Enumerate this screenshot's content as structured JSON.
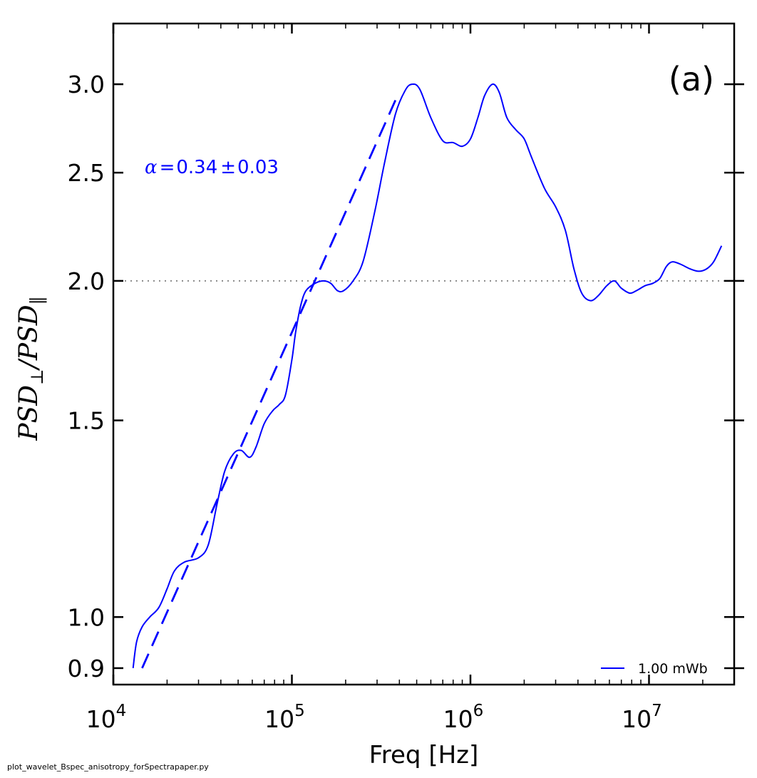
{
  "chart_data": {
    "type": "line",
    "title": "",
    "xlabel": "Freq [Hz]",
    "ylabel_parts": {
      "main": "PSD",
      "sub_perp": "⊥",
      "sep": "/",
      "main2": "PSD",
      "sub_par": "‖"
    },
    "xscale": "log",
    "yscale": "log",
    "xlim": [
      10000,
      30000000
    ],
    "ylim": [
      0.87,
      3.4
    ],
    "xticks": [
      {
        "value": 10000,
        "base": "10",
        "exp": "4"
      },
      {
        "value": 100000,
        "base": "10",
        "exp": "5"
      },
      {
        "value": 1000000,
        "base": "10",
        "exp": "6"
      },
      {
        "value": 10000000,
        "base": "10",
        "exp": "7"
      }
    ],
    "yticks": [
      {
        "value": 0.9,
        "label": "0.9"
      },
      {
        "value": 1.0,
        "label": "1.0"
      },
      {
        "value": 1.5,
        "label": "1.5"
      },
      {
        "value": 2.0,
        "label": "2.0"
      },
      {
        "value": 2.5,
        "label": "2.5"
      },
      {
        "value": 3.0,
        "label": "3.0"
      }
    ],
    "panel_label": "(a)",
    "annotation": {
      "greek": "α",
      "eq": "=",
      "value": "0.34",
      "pm": "±",
      "err": "0.03",
      "color": "#0000ff"
    },
    "reference_line": {
      "y": 2.0,
      "style": "dotted",
      "color": "#888888"
    },
    "legend": {
      "location": "lower-right"
    },
    "series": [
      {
        "name": "1.00 mWb",
        "color": "#0000ff",
        "style": "solid",
        "points": [
          [
            12900,
            0.9
          ],
          [
            13500,
            0.95
          ],
          [
            14500,
            0.98
          ],
          [
            16000,
            1.0
          ],
          [
            18000,
            1.02
          ],
          [
            20000,
            1.06
          ],
          [
            22000,
            1.1
          ],
          [
            25000,
            1.12
          ],
          [
            30000,
            1.13
          ],
          [
            34000,
            1.16
          ],
          [
            38000,
            1.26
          ],
          [
            42000,
            1.35
          ],
          [
            47000,
            1.4
          ],
          [
            52000,
            1.41
          ],
          [
            58000,
            1.39
          ],
          [
            63000,
            1.42
          ],
          [
            70000,
            1.49
          ],
          [
            78000,
            1.53
          ],
          [
            85000,
            1.55
          ],
          [
            92000,
            1.58
          ],
          [
            100000,
            1.7
          ],
          [
            105000,
            1.8
          ],
          [
            112000,
            1.9
          ],
          [
            120000,
            1.96
          ],
          [
            135000,
            1.99
          ],
          [
            150000,
            2.0
          ],
          [
            165000,
            1.99
          ],
          [
            180000,
            1.96
          ],
          [
            195000,
            1.96
          ],
          [
            220000,
            2.0
          ],
          [
            250000,
            2.08
          ],
          [
            290000,
            2.3
          ],
          [
            330000,
            2.55
          ],
          [
            380000,
            2.82
          ],
          [
            430000,
            2.96
          ],
          [
            470000,
            3.0
          ],
          [
            520000,
            2.97
          ],
          [
            600000,
            2.8
          ],
          [
            700000,
            2.67
          ],
          [
            800000,
            2.66
          ],
          [
            900000,
            2.64
          ],
          [
            1000000,
            2.68
          ],
          [
            1100000,
            2.8
          ],
          [
            1200000,
            2.93
          ],
          [
            1330000,
            3.0
          ],
          [
            1450000,
            2.95
          ],
          [
            1600000,
            2.8
          ],
          [
            1800000,
            2.73
          ],
          [
            2000000,
            2.68
          ],
          [
            2200000,
            2.58
          ],
          [
            2600000,
            2.42
          ],
          [
            3000000,
            2.33
          ],
          [
            3400000,
            2.22
          ],
          [
            3800000,
            2.05
          ],
          [
            4200000,
            1.95
          ],
          [
            4700000,
            1.92
          ],
          [
            5200000,
            1.94
          ],
          [
            5800000,
            1.98
          ],
          [
            6400000,
            2.0
          ],
          [
            7000000,
            1.97
          ],
          [
            7800000,
            1.95
          ],
          [
            8500000,
            1.96
          ],
          [
            9500000,
            1.98
          ],
          [
            10500000,
            1.99
          ],
          [
            11500000,
            2.01
          ],
          [
            12500000,
            2.06
          ],
          [
            13500000,
            2.08
          ],
          [
            15000000,
            2.07
          ],
          [
            17000000,
            2.05
          ],
          [
            19000000,
            2.04
          ],
          [
            21000000,
            2.05
          ],
          [
            23000000,
            2.08
          ],
          [
            25500000,
            2.15
          ]
        ]
      },
      {
        "name": "fit",
        "color": "#0000ff",
        "style": "dashed",
        "points": [
          [
            14500,
            0.9
          ],
          [
            390000,
            2.93
          ]
        ]
      }
    ]
  },
  "footer": {
    "script_name": "plot_wavelet_Bspec_anisotropy_forSpectrapaper.py"
  }
}
